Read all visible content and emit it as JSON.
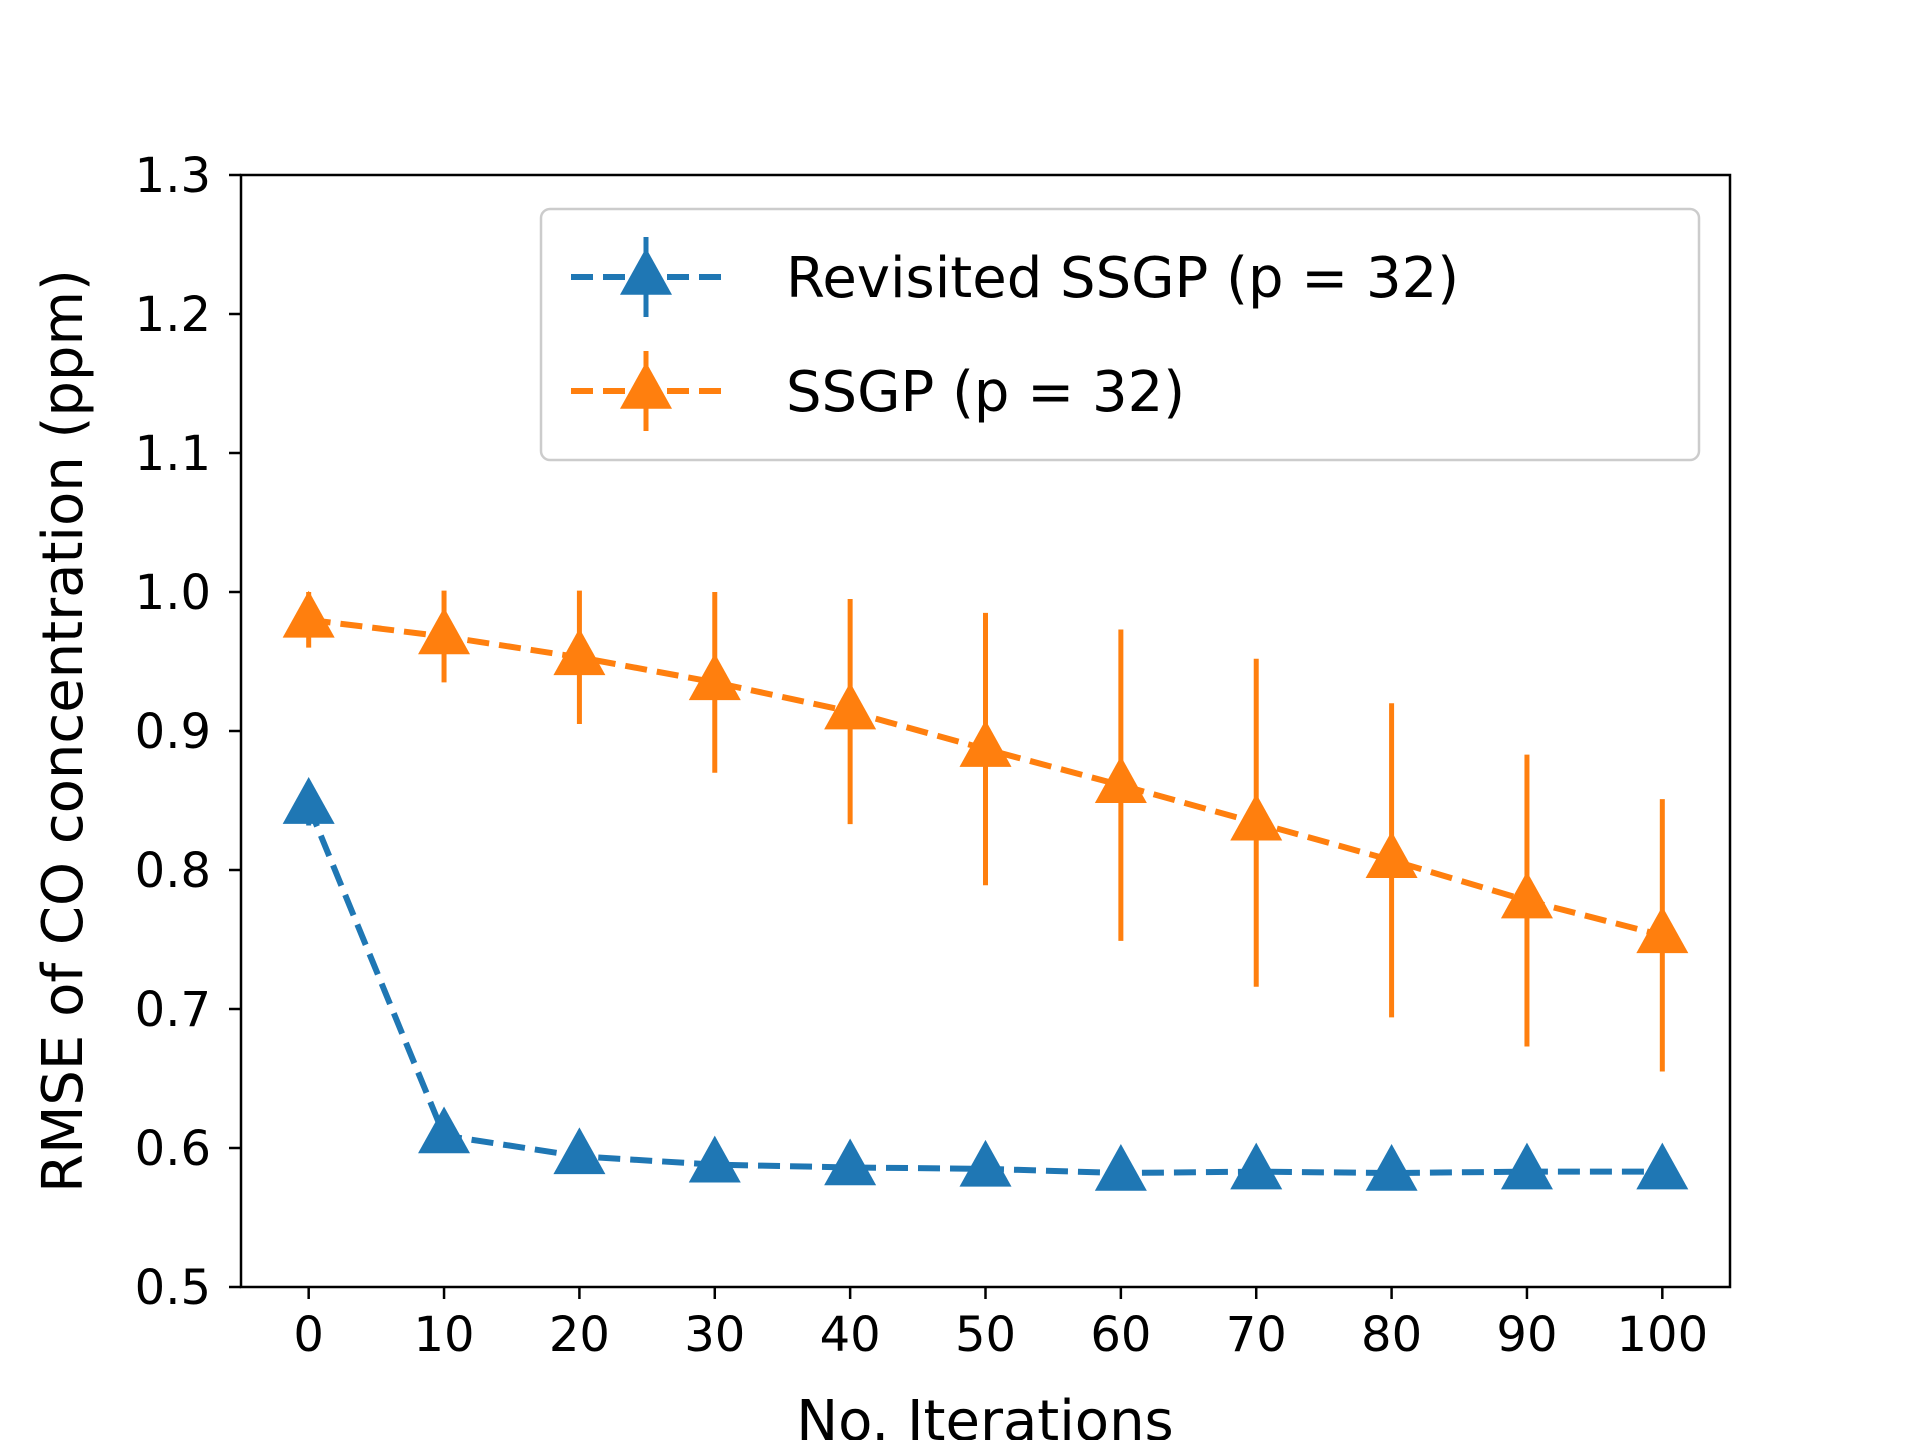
{
  "chart_data": {
    "type": "line",
    "title": "",
    "xlabel": "No. Iterations",
    "ylabel": "RMSE of CO concentration (ppm)",
    "x": [
      0,
      10,
      20,
      30,
      40,
      50,
      60,
      70,
      80,
      90,
      100
    ],
    "xlim": [
      -5,
      105
    ],
    "ylim": [
      0.5,
      1.3
    ],
    "xticks": [
      "0",
      "10",
      "20",
      "30",
      "40",
      "50",
      "60",
      "70",
      "80",
      "90",
      "100"
    ],
    "yticks": [
      "0.5",
      "0.6",
      "0.7",
      "0.8",
      "0.9",
      "1.0",
      "1.1",
      "1.2",
      "1.3"
    ],
    "grid": false,
    "legend_position": "top-right",
    "series": [
      {
        "name": "Revisited SSGP",
        "legend_suffix": "(p = 32)",
        "color": "#1f77b4",
        "marker": "triangle-up",
        "linestyle": "dashed",
        "values": [
          0.846,
          0.609,
          0.594,
          0.588,
          0.586,
          0.585,
          0.582,
          0.583,
          0.582,
          0.583,
          0.583
        ],
        "errors": [
          0.014,
          0.0,
          0.0,
          0.0,
          0.0,
          0.0,
          0.0,
          0.0,
          0.0,
          0.0,
          0.0
        ]
      },
      {
        "name": "SSGP",
        "legend_suffix": "(p = 32)",
        "color": "#ff7f0e",
        "marker": "triangle-up",
        "linestyle": "dashed",
        "values": [
          0.98,
          0.968,
          0.953,
          0.935,
          0.914,
          0.887,
          0.861,
          0.834,
          0.807,
          0.778,
          0.753
        ],
        "errors": [
          0.02,
          0.033,
          0.048,
          0.065,
          0.081,
          0.098,
          0.112,
          0.118,
          0.113,
          0.105,
          0.098
        ]
      }
    ]
  }
}
